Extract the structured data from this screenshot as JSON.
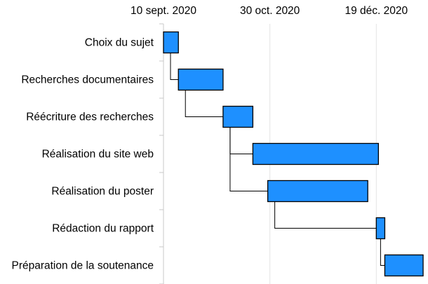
{
  "chart_data": {
    "type": "gantt",
    "title": "",
    "x_ticks": [
      {
        "date": "2020-09-10",
        "label": "10 sept. 2020"
      },
      {
        "date": "2020-10-30",
        "label": "30 oct. 2020"
      },
      {
        "date": "2020-12-19",
        "label": "19 déc. 2020"
      }
    ],
    "xlim": [
      "2020-09-10",
      "2021-01-09"
    ],
    "grid": true,
    "bar_color": "#1e90ff",
    "tasks": [
      {
        "name": "Choix du sujet",
        "start": "2020-09-10",
        "end": "2020-09-17"
      },
      {
        "name": "Recherches documentaires",
        "start": "2020-09-17",
        "end": "2020-10-08"
      },
      {
        "name": "Réécriture des recherches",
        "start": "2020-10-08",
        "end": "2020-10-22"
      },
      {
        "name": "Réalisation du site web",
        "start": "2020-10-22",
        "end": "2020-12-20"
      },
      {
        "name": "Réalisation du poster",
        "start": "2020-10-29",
        "end": "2020-12-15"
      },
      {
        "name": "Rédaction du rapport",
        "start": "2020-12-19",
        "end": "2020-12-23"
      },
      {
        "name": "Préparation de la soutenance",
        "start": "2020-12-23",
        "end": "2021-01-10"
      }
    ],
    "dependencies": [
      {
        "from": 0,
        "to": 1
      },
      {
        "from": 1,
        "to": 2
      },
      {
        "from": 2,
        "to": 3
      },
      {
        "from": 2,
        "to": 4
      },
      {
        "from": 4,
        "to": 5
      },
      {
        "from": 5,
        "to": 6
      }
    ]
  }
}
